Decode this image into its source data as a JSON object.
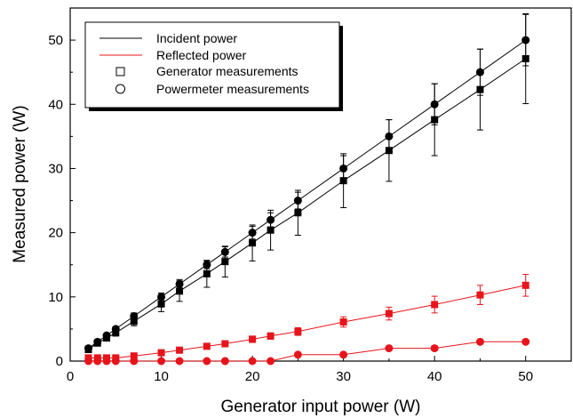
{
  "chart_data": {
    "type": "scatter",
    "xlabel": "Generator input power (W)",
    "ylabel": "Measured power (W)",
    "xlim": [
      0,
      55
    ],
    "ylim": [
      0,
      55
    ],
    "xticks": [
      0,
      10,
      20,
      30,
      40,
      50
    ],
    "yticks": [
      0,
      10,
      20,
      30,
      40,
      50
    ],
    "grid": false,
    "legend_position": "top-left",
    "legend": [
      {
        "label": "Incident power",
        "kind": "line",
        "color": "#000000"
      },
      {
        "label": "Reflected power",
        "kind": "line",
        "color": "#e8141b"
      },
      {
        "label": "Generator measurements",
        "kind": "square",
        "color": "#000000"
      },
      {
        "label": "Powermeter measurements",
        "kind": "circle",
        "color": "#000000"
      }
    ],
    "x": [
      2,
      3,
      4,
      5,
      7,
      10,
      12,
      15,
      17,
      20,
      22,
      25,
      30,
      35,
      40,
      45,
      50
    ],
    "series": [
      {
        "id": "incident-powermeter",
        "group": "Incident power",
        "marker": "circle",
        "color": "#000000",
        "values": [
          2,
          3,
          4,
          5,
          7,
          10,
          12,
          15,
          17,
          20,
          22,
          25,
          30,
          35,
          40,
          45,
          50
        ],
        "errors": [
          0.3,
          0.3,
          0.3,
          0.4,
          0.5,
          0.6,
          0.7,
          0.6,
          0.8,
          1.0,
          1.1,
          1.3,
          2.0,
          2.6,
          3.2,
          3.6,
          4.0
        ]
      },
      {
        "id": "incident-generator",
        "group": "Incident power",
        "marker": "square",
        "color": "#000000",
        "values": [
          1.8,
          2.8,
          3.6,
          4.4,
          6.2,
          8.9,
          10.9,
          13.6,
          15.5,
          18.4,
          20.4,
          23.1,
          28.1,
          32.8,
          37.6,
          42.3,
          47.1
        ],
        "errors": [
          0.3,
          0.3,
          0.4,
          0.5,
          0.7,
          1.2,
          1.6,
          2.1,
          2.4,
          2.8,
          3.1,
          3.5,
          4.2,
          4.8,
          5.6,
          6.3,
          7.0
        ]
      },
      {
        "id": "reflected-generator",
        "group": "Reflected power",
        "marker": "square",
        "color": "#e8141b",
        "values": [
          0.5,
          0.5,
          0.5,
          0.5,
          0.8,
          1.3,
          1.7,
          2.3,
          2.7,
          3.4,
          3.9,
          4.6,
          6.1,
          7.4,
          8.8,
          10.3,
          11.8
        ],
        "errors": [
          0.1,
          0.1,
          0.1,
          0.1,
          0.2,
          0.3,
          0.3,
          0.4,
          0.4,
          0.5,
          0.5,
          0.6,
          0.8,
          1.0,
          1.3,
          1.5,
          1.7
        ]
      },
      {
        "id": "reflected-powermeter",
        "group": "Reflected power",
        "marker": "circle",
        "color": "#e8141b",
        "values": [
          0,
          0,
          0,
          0,
          0,
          0,
          0,
          0,
          0,
          0,
          0,
          1,
          1,
          2,
          2,
          3,
          3
        ],
        "errors": [
          0,
          0,
          0,
          0,
          0,
          0,
          0,
          0,
          0,
          0,
          0,
          0,
          0,
          0,
          0,
          0,
          0
        ]
      }
    ]
  }
}
